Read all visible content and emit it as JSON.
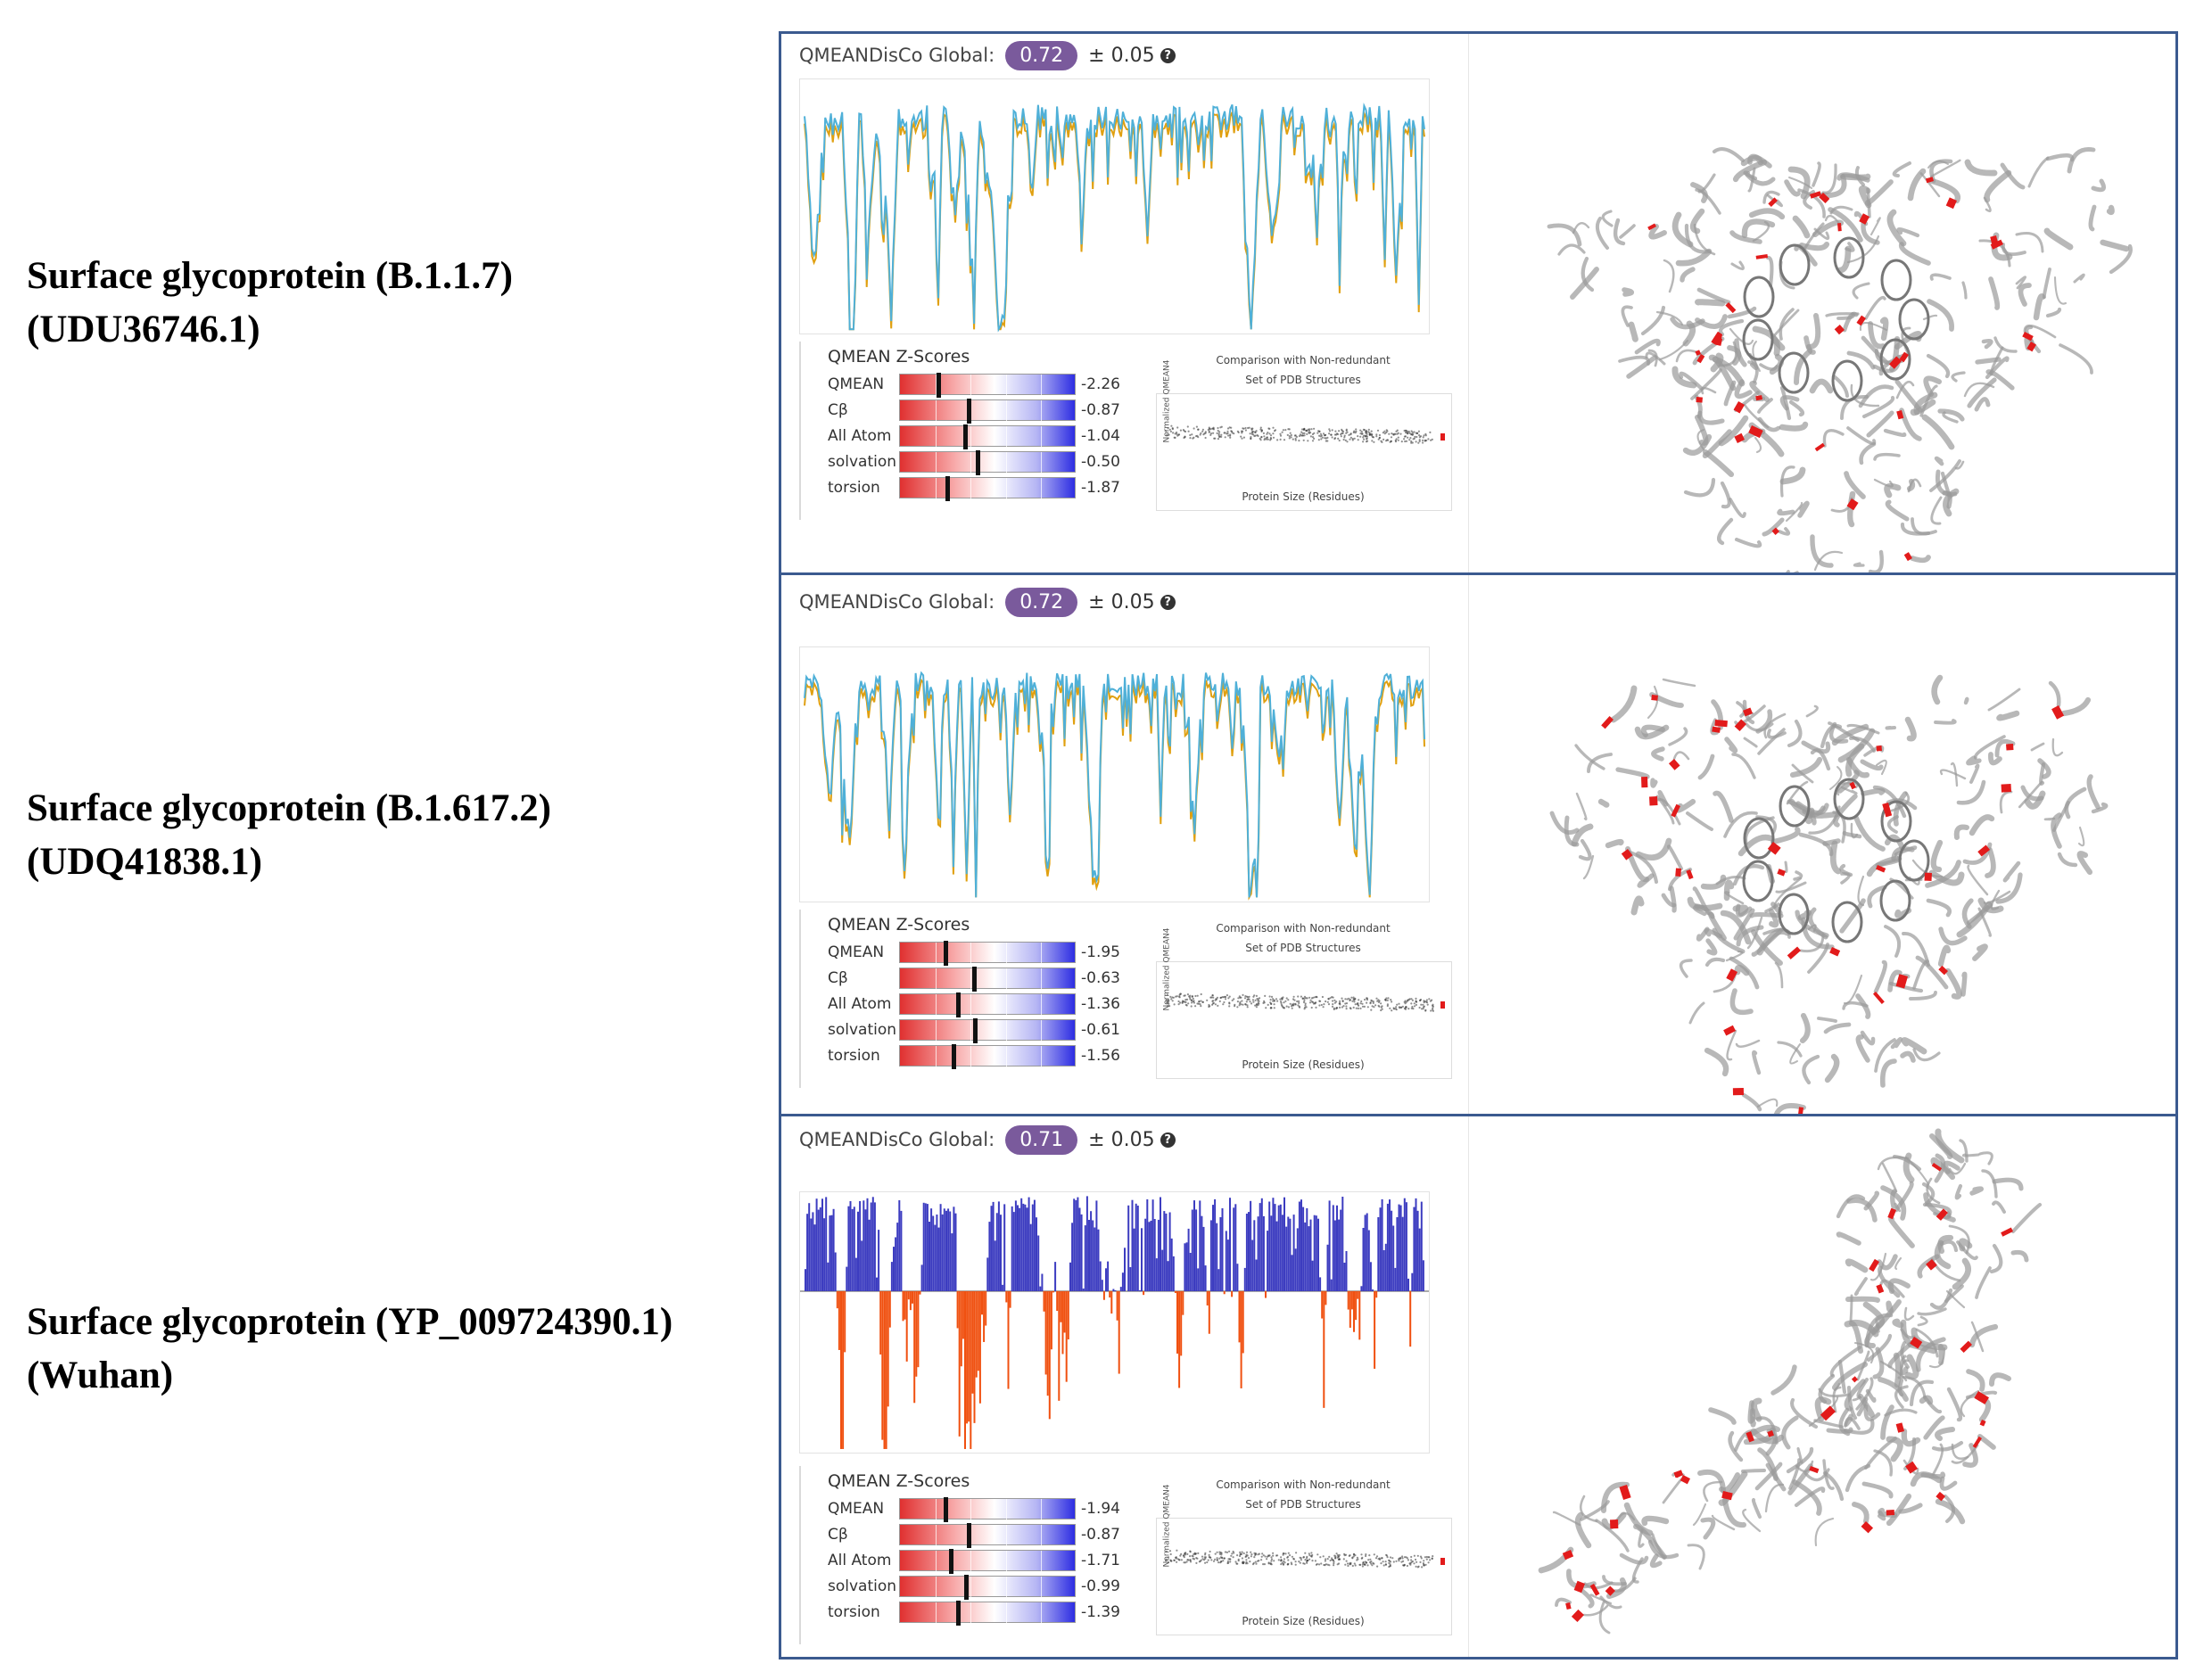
{
  "rows": [
    {
      "label_line1": "Surface glycoprotein (B.1.1.7)",
      "label_line2": "(UDU36746.1)",
      "global_label": "QMEANDisCo Global:",
      "global_value": "0.72",
      "global_error": "± 0.05",
      "chart_style": "line",
      "zscores_title": "QMEAN Z-Scores",
      "zscores": [
        {
          "name": "QMEAN",
          "value": "-2.26",
          "score": -2.26
        },
        {
          "name": "Cβ",
          "value": "-0.87",
          "score": -0.87
        },
        {
          "name": "All Atom",
          "value": "-1.04",
          "score": -1.04
        },
        {
          "name": "solvation",
          "value": "-0.50",
          "score": -0.5
        },
        {
          "name": "torsion",
          "value": "-1.87",
          "score": -1.87
        }
      ],
      "comparison_title1": "Comparison with Non-redundant",
      "comparison_title2": "Set of PDB Structures",
      "comparison_ylabel": "Normalized QMEAN4",
      "comparison_xlabel": "Protein Size (Residues)"
    },
    {
      "label_line1": "Surface glycoprotein (B.1.617.2)",
      "label_line2": "(UDQ41838.1)",
      "global_label": "QMEANDisCo Global:",
      "global_value": "0.72",
      "global_error": "± 0.05",
      "chart_style": "line",
      "zscores_title": "QMEAN Z-Scores",
      "zscores": [
        {
          "name": "QMEAN",
          "value": "-1.95",
          "score": -1.95
        },
        {
          "name": "Cβ",
          "value": "-0.63",
          "score": -0.63
        },
        {
          "name": "All Atom",
          "value": "-1.36",
          "score": -1.36
        },
        {
          "name": "solvation",
          "value": "-0.61",
          "score": -0.61
        },
        {
          "name": "torsion",
          "value": "-1.56",
          "score": -1.56
        }
      ],
      "comparison_title1": "Comparison with Non-redundant",
      "comparison_title2": "Set of PDB Structures",
      "comparison_ylabel": "Normalized QMEAN4",
      "comparison_xlabel": "Protein Size (Residues)"
    },
    {
      "label_line1": "Surface glycoprotein (YP_009724390.1)",
      "label_line2": "(Wuhan)",
      "global_label": "QMEANDisCo Global:",
      "global_value": "0.71",
      "global_error": "± 0.05",
      "chart_style": "bars",
      "zscores_title": "QMEAN Z-Scores",
      "zscores": [
        {
          "name": "QMEAN",
          "value": "-1.94",
          "score": -1.94
        },
        {
          "name": "Cβ",
          "value": "-0.87",
          "score": -0.87
        },
        {
          "name": "All Atom",
          "value": "-1.71",
          "score": -1.71
        },
        {
          "name": "solvation",
          "value": "-0.99",
          "score": -0.99
        },
        {
          "name": "torsion",
          "value": "-1.39",
          "score": -1.39
        }
      ],
      "comparison_title1": "Comparison with Non-redundant",
      "comparison_title2": "Set of PDB Structures",
      "comparison_ylabel": "Normalized QMEAN4",
      "comparison_xlabel": "Protein Size (Residues)"
    }
  ],
  "colors": {
    "border": "#3b5a8f",
    "badge": "#7a5a9c",
    "line_primary": "#4fb0d8",
    "line_secondary": "#e0a010",
    "bar_positive": "#3c3cc0",
    "bar_negative": "#f05010",
    "structure_highlight": "#e21b1b"
  }
}
